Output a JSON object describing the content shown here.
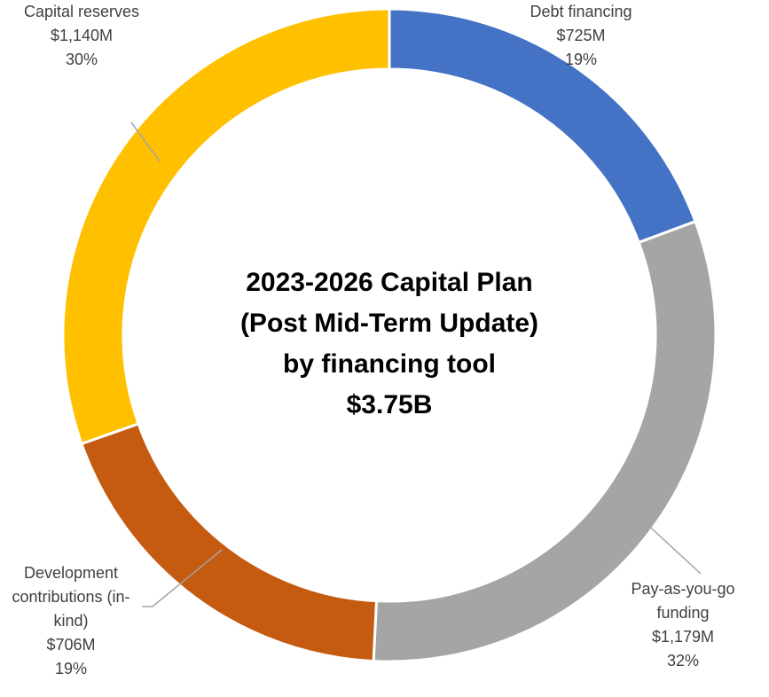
{
  "chart_data": {
    "type": "donut",
    "title_lines": [
      "2023-2026 Capital Plan",
      "(Post Mid-Term Update)",
      "by financing tool"
    ],
    "total_label": "$3.75B",
    "categories": [
      "Debt financing",
      "Pay-as-you-go funding",
      "Development contributions (in-kind)",
      "Capital reserves"
    ],
    "values": [
      725,
      1179,
      706,
      1140
    ],
    "value_labels": [
      "$725M",
      "$1,179M",
      "$706M",
      "$1,140M"
    ],
    "percent_labels": [
      "19%",
      "32%",
      "19%",
      "30%"
    ],
    "colors": [
      "#4472c4",
      "#a5a5a5",
      "#c55a11",
      "#ffc000"
    ]
  }
}
